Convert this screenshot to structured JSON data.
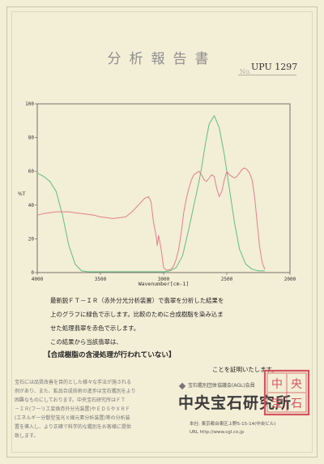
{
  "document": {
    "title": "分析報告書",
    "number_label": "No.",
    "number": "UPU 1297"
  },
  "chart_data": {
    "type": "line",
    "xlabel": "Wavenumber[cm-1]",
    "ylabel": "%T",
    "xlim": [
      4000,
      2000
    ],
    "ylim": [
      0,
      100
    ],
    "x_ticks": [
      "4000",
      "3500",
      "3000",
      "2500",
      "2000"
    ],
    "y_ticks": [
      "0",
      "20",
      "40",
      "60",
      "80",
      "100"
    ],
    "series": [
      {
        "color": "#5fbf7f",
        "x": [
          4000,
          3950,
          3900,
          3850,
          3800,
          3750,
          3700,
          3650,
          3600,
          3550,
          3500,
          3450,
          3400,
          3350,
          3300,
          3250,
          3200,
          3150,
          3100,
          3050,
          3000,
          2950,
          2900,
          2850,
          2800,
          2760,
          2720,
          2700,
          2670,
          2640,
          2600,
          2560,
          2520,
          2480,
          2440,
          2400,
          2350,
          2300,
          2250,
          2220,
          2200
        ],
        "y": [
          59,
          57,
          54,
          48,
          34,
          16,
          5,
          1,
          0.5,
          0.5,
          0.5,
          0.5,
          0.5,
          0.5,
          0.5,
          0.5,
          0.5,
          0.5,
          0.5,
          0.5,
          0.5,
          1,
          3,
          10,
          26,
          40,
          54,
          62,
          76,
          88,
          93,
          86,
          70,
          50,
          30,
          14,
          5,
          2,
          1,
          1,
          1
        ]
      },
      {
        "color": "#e0808a",
        "x": [
          4000,
          3950,
          3900,
          3850,
          3800,
          3750,
          3700,
          3650,
          3600,
          3550,
          3500,
          3450,
          3400,
          3350,
          3300,
          3250,
          3200,
          3150,
          3120,
          3100,
          3080,
          3060,
          3050,
          3040,
          3020,
          3000,
          2980,
          2960,
          2940,
          2920,
          2900,
          2880,
          2860,
          2840,
          2820,
          2800,
          2780,
          2760,
          2740,
          2720,
          2700,
          2680,
          2660,
          2640,
          2620,
          2600,
          2580,
          2560,
          2540,
          2520,
          2500,
          2480,
          2460,
          2440,
          2420,
          2400,
          2380,
          2360,
          2340,
          2320,
          2300,
          2280,
          2260,
          2240,
          2220,
          2200
        ],
        "y": [
          34,
          35,
          35.5,
          36,
          36,
          36,
          35.5,
          35,
          34.5,
          34,
          33,
          32.5,
          32,
          32.5,
          33,
          36,
          40,
          44,
          45,
          42,
          30,
          22,
          16,
          22,
          14,
          3,
          1.5,
          1.5,
          2,
          4,
          8,
          14,
          24,
          36,
          44,
          50,
          55,
          58,
          59,
          60,
          58,
          55,
          54,
          56,
          58,
          57,
          50,
          45,
          48,
          55,
          60,
          58,
          57,
          56,
          57,
          59,
          61,
          62,
          61,
          59,
          55,
          45,
          30,
          15,
          6,
          2
        ]
      }
    ]
  },
  "description": {
    "line1": "最新鋭ＦＴ－ＩＲ（赤外分光分析装置）で翡翠を分析した結果を",
    "line2": "上のグラフに緑色で示します。比較のために合成樹脂を染み込ま",
    "line3": "せた処理翡翠を赤色で示します。",
    "line4": "この結果から当該翡翠は、",
    "emphasis": "【合成樹脂の含浸処理が行われていない】",
    "certify": "ことを証明いたします。"
  },
  "note": {
    "line1": "宝石には品質改善を目的とした様々な手法が施される",
    "line2": "例があり、また、鉱品合成技術の進歩は宝石鑑別をより",
    "line3": "困難なものにしております。中央宝石研究所はＦＴ",
    "line4": "－ＩＲ(フーリエ変換赤外分光装置)やＥＤＳやＸＲＦ",
    "line5": "(エネルギー分散型蛍光Ｘ線元素分析装置)等の分析装",
    "line6": "置を導入し、より正確で科学的な鑑別をお客様に提供",
    "line7": "致します。"
  },
  "company": {
    "association": "宝石鑑別団体協議会(AGL)会員",
    "name": "中央宝石研究所",
    "address_label": "本社",
    "address": "東京都台東区上野5-15-14(中央ビル)",
    "url_label": "URL",
    "url": "http://www.cgl.co.jp",
    "seal_text": "中央宝石研究所"
  }
}
